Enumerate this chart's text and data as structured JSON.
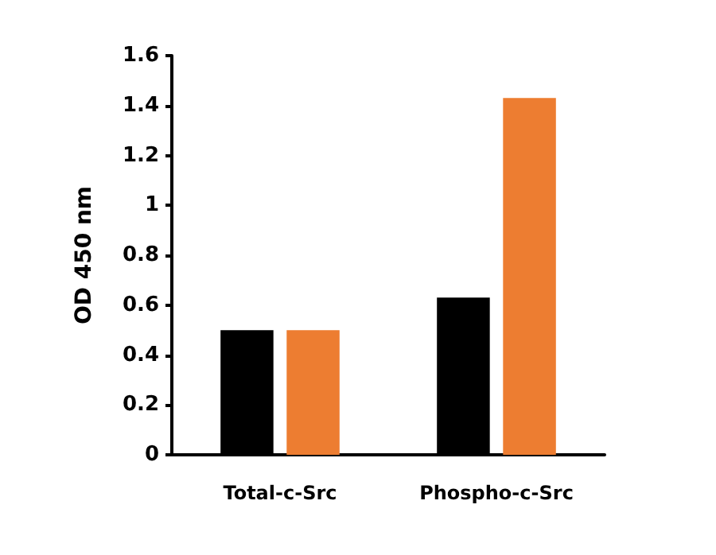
{
  "chart_data": {
    "type": "bar",
    "ylabel": "OD 450 nm",
    "categories": [
      "Total-c-Src",
      "Phospho-c-Src"
    ],
    "series": [
      {
        "color": "#000000",
        "values": [
          0.5,
          0.63
        ]
      },
      {
        "color": "#ed7d31",
        "values": [
          0.5,
          1.43
        ]
      }
    ],
    "ylim": [
      0,
      1.6
    ],
    "yticks": [
      0,
      0.2,
      0.4,
      0.6,
      0.8,
      1,
      1.2,
      1.4,
      1.6
    ],
    "grid": false
  }
}
